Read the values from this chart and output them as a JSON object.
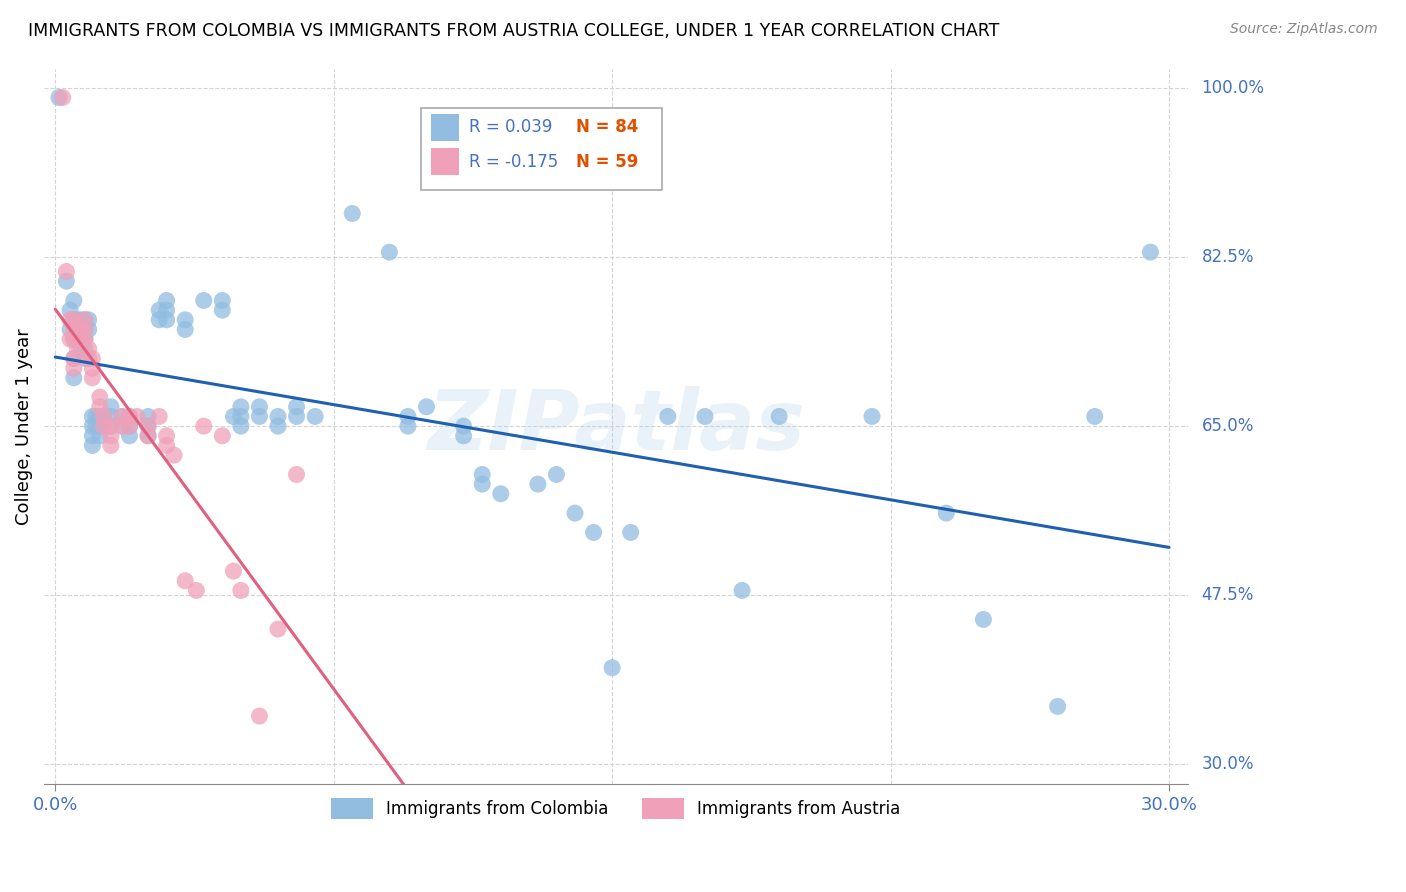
{
  "title": "IMMIGRANTS FROM COLOMBIA VS IMMIGRANTS FROM AUSTRIA COLLEGE, UNDER 1 YEAR CORRELATION CHART",
  "source": "Source: ZipAtlas.com",
  "ylabel": "College, Under 1 year",
  "xlim": [
    -0.003,
    0.305
  ],
  "ylim": [
    0.28,
    1.02
  ],
  "ytick_labels": [
    "100.0%",
    "82.5%",
    "65.0%",
    "47.5%",
    "30.0%"
  ],
  "ytick_values": [
    1.0,
    0.825,
    0.65,
    0.475,
    0.3
  ],
  "xtick_labels": [
    "0.0%",
    "30.0%"
  ],
  "xtick_values": [
    0.0,
    0.3
  ],
  "colombia_color": "#92bce0",
  "austria_color": "#f0a0b8",
  "colombia_R": 0.039,
  "colombia_N": 84,
  "austria_R": -0.175,
  "austria_N": 59,
  "watermark": "ZIPatlas",
  "colombia_line_color": "#2060b0",
  "austria_line_solid_color": "#e06080",
  "austria_line_dash_color": "#c0a0b0",
  "legend_R_color": "#4472c4",
  "legend_N_color": "#e05000",
  "colombia_points": [
    [
      0.001,
      0.99
    ],
    [
      0.003,
      0.8
    ],
    [
      0.004,
      0.77
    ],
    [
      0.004,
      0.75
    ],
    [
      0.005,
      0.78
    ],
    [
      0.005,
      0.76
    ],
    [
      0.005,
      0.74
    ],
    [
      0.005,
      0.72
    ],
    [
      0.005,
      0.7
    ],
    [
      0.006,
      0.76
    ],
    [
      0.006,
      0.75
    ],
    [
      0.006,
      0.74
    ],
    [
      0.007,
      0.76
    ],
    [
      0.007,
      0.75
    ],
    [
      0.007,
      0.74
    ],
    [
      0.007,
      0.73
    ],
    [
      0.008,
      0.76
    ],
    [
      0.008,
      0.75
    ],
    [
      0.008,
      0.74
    ],
    [
      0.008,
      0.73
    ],
    [
      0.008,
      0.72
    ],
    [
      0.009,
      0.76
    ],
    [
      0.009,
      0.75
    ],
    [
      0.01,
      0.66
    ],
    [
      0.01,
      0.65
    ],
    [
      0.01,
      0.64
    ],
    [
      0.01,
      0.63
    ],
    [
      0.011,
      0.66
    ],
    [
      0.011,
      0.65
    ],
    [
      0.012,
      0.66
    ],
    [
      0.012,
      0.65
    ],
    [
      0.012,
      0.64
    ],
    [
      0.013,
      0.66
    ],
    [
      0.013,
      0.65
    ],
    [
      0.015,
      0.67
    ],
    [
      0.015,
      0.66
    ],
    [
      0.015,
      0.65
    ],
    [
      0.018,
      0.66
    ],
    [
      0.018,
      0.65
    ],
    [
      0.02,
      0.66
    ],
    [
      0.02,
      0.65
    ],
    [
      0.02,
      0.64
    ],
    [
      0.025,
      0.66
    ],
    [
      0.025,
      0.65
    ],
    [
      0.025,
      0.64
    ],
    [
      0.028,
      0.77
    ],
    [
      0.028,
      0.76
    ],
    [
      0.03,
      0.78
    ],
    [
      0.03,
      0.77
    ],
    [
      0.03,
      0.76
    ],
    [
      0.035,
      0.76
    ],
    [
      0.035,
      0.75
    ],
    [
      0.04,
      0.78
    ],
    [
      0.045,
      0.78
    ],
    [
      0.045,
      0.77
    ],
    [
      0.048,
      0.66
    ],
    [
      0.05,
      0.67
    ],
    [
      0.05,
      0.66
    ],
    [
      0.05,
      0.65
    ],
    [
      0.055,
      0.67
    ],
    [
      0.055,
      0.66
    ],
    [
      0.06,
      0.66
    ],
    [
      0.06,
      0.65
    ],
    [
      0.065,
      0.67
    ],
    [
      0.065,
      0.66
    ],
    [
      0.07,
      0.66
    ],
    [
      0.08,
      0.87
    ],
    [
      0.09,
      0.83
    ],
    [
      0.095,
      0.66
    ],
    [
      0.095,
      0.65
    ],
    [
      0.1,
      0.67
    ],
    [
      0.11,
      0.65
    ],
    [
      0.11,
      0.64
    ],
    [
      0.115,
      0.6
    ],
    [
      0.115,
      0.59
    ],
    [
      0.12,
      0.58
    ],
    [
      0.13,
      0.59
    ],
    [
      0.135,
      0.6
    ],
    [
      0.14,
      0.56
    ],
    [
      0.145,
      0.54
    ],
    [
      0.15,
      0.4
    ],
    [
      0.155,
      0.54
    ],
    [
      0.165,
      0.66
    ],
    [
      0.175,
      0.66
    ],
    [
      0.185,
      0.48
    ],
    [
      0.195,
      0.66
    ],
    [
      0.22,
      0.66
    ],
    [
      0.24,
      0.56
    ],
    [
      0.25,
      0.45
    ],
    [
      0.27,
      0.36
    ],
    [
      0.28,
      0.66
    ],
    [
      0.295,
      0.83
    ]
  ],
  "austria_points": [
    [
      0.002,
      0.99
    ],
    [
      0.003,
      0.81
    ],
    [
      0.004,
      0.76
    ],
    [
      0.004,
      0.74
    ],
    [
      0.005,
      0.76
    ],
    [
      0.005,
      0.75
    ],
    [
      0.005,
      0.74
    ],
    [
      0.005,
      0.72
    ],
    [
      0.005,
      0.71
    ],
    [
      0.006,
      0.75
    ],
    [
      0.006,
      0.74
    ],
    [
      0.006,
      0.73
    ],
    [
      0.007,
      0.75
    ],
    [
      0.007,
      0.74
    ],
    [
      0.008,
      0.76
    ],
    [
      0.008,
      0.75
    ],
    [
      0.008,
      0.74
    ],
    [
      0.009,
      0.73
    ],
    [
      0.009,
      0.72
    ],
    [
      0.01,
      0.72
    ],
    [
      0.01,
      0.71
    ],
    [
      0.01,
      0.7
    ],
    [
      0.012,
      0.68
    ],
    [
      0.012,
      0.67
    ],
    [
      0.013,
      0.66
    ],
    [
      0.013,
      0.65
    ],
    [
      0.015,
      0.65
    ],
    [
      0.015,
      0.64
    ],
    [
      0.015,
      0.63
    ],
    [
      0.018,
      0.66
    ],
    [
      0.018,
      0.65
    ],
    [
      0.02,
      0.66
    ],
    [
      0.02,
      0.65
    ],
    [
      0.022,
      0.66
    ],
    [
      0.025,
      0.65
    ],
    [
      0.025,
      0.64
    ],
    [
      0.028,
      0.66
    ],
    [
      0.03,
      0.64
    ],
    [
      0.03,
      0.63
    ],
    [
      0.032,
      0.62
    ],
    [
      0.035,
      0.49
    ],
    [
      0.038,
      0.48
    ],
    [
      0.04,
      0.65
    ],
    [
      0.045,
      0.64
    ],
    [
      0.048,
      0.5
    ],
    [
      0.05,
      0.48
    ],
    [
      0.055,
      0.35
    ],
    [
      0.06,
      0.44
    ],
    [
      0.065,
      0.6
    ]
  ]
}
